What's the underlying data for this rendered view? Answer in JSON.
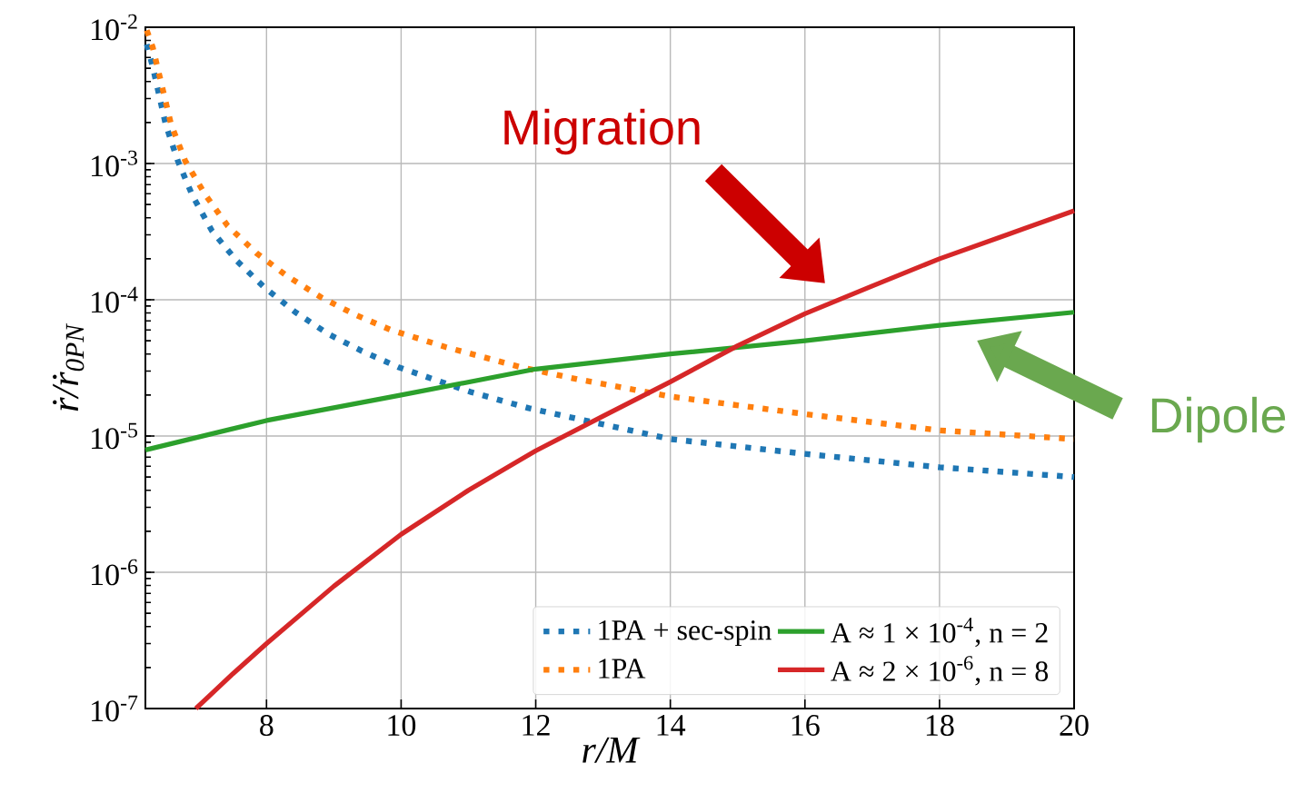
{
  "chart_data": {
    "type": "line",
    "xlabel": "r/M",
    "ylabel": "ṙ/ṙ$_{0PN}$",
    "log": "y",
    "grid": true,
    "legend": "bottom right",
    "xlim": [
      6.2,
      20
    ],
    "xticks": [
      8,
      10,
      12,
      14,
      16,
      18,
      20
    ],
    "ylim": [
      1e-07,
      0.01
    ],
    "yticks": [
      {
        "value": 1e-07,
        "label": "10$^{-7}$"
      },
      {
        "value": 1e-06,
        "label": "10$^{-6}$"
      },
      {
        "value": 1e-05,
        "label": "10$^{-5}$"
      },
      {
        "value": 0.0001,
        "label": "10$^{-4}$"
      },
      {
        "value": 0.001,
        "label": "10$^{-3}$"
      },
      {
        "value": 0.01,
        "label": "10$^{-2}$"
      }
    ],
    "series": [
      {
        "name": "1PA + sec-spin",
        "color": "#1f77b4",
        "line_style": "dotted",
        "x": [
          6.22,
          6.31,
          6.5,
          6.68,
          6.9,
          7.19,
          7.55,
          7.97,
          8.43,
          8.92,
          9.42,
          9.96,
          11.04,
          11.9,
          14,
          16,
          18,
          20
        ],
        "values": [
          0.0075,
          0.0051,
          0.00195,
          0.00105,
          0.00058,
          0.00032,
          0.000195,
          0.000123,
          8.1e-05,
          5.6e-05,
          4.2e-05,
          3.2e-05,
          2.1e-05,
          1.6e-05,
          9.5e-06,
          7.4e-06,
          5.9e-06,
          5e-06
        ]
      },
      {
        "name": "1PA",
        "color": "#ff7f0e",
        "line_style": "dotted",
        "x": [
          6.22,
          6.31,
          6.58,
          6.79,
          7.08,
          7.42,
          7.85,
          8.3,
          8.8,
          9.31,
          9.85,
          10.66,
          11.78,
          12.64,
          14,
          16,
          18,
          20
        ],
        "values": [
          0.0095,
          0.0071,
          0.00195,
          0.00105,
          0.0006,
          0.00035,
          0.00022,
          0.00015,
          0.000105,
          7.8e-05,
          6e-05,
          4.5e-05,
          3.2e-05,
          2.6e-05,
          1.95e-05,
          1.45e-05,
          1.1e-05,
          9.5e-06
        ]
      },
      {
        "name": "A ≈ 1 × 10$^{-4}$, n = 2",
        "color": "#2ca02c",
        "line_style": "solid",
        "x": [
          6.2,
          8,
          10,
          12,
          14,
          16,
          18,
          20
        ],
        "values": [
          7.9e-06,
          1.3e-05,
          2e-05,
          3.1e-05,
          4e-05,
          5e-05,
          6.5e-05,
          8.1e-05
        ]
      },
      {
        "name": "A ≈ 2 × 10$^{-6}$, n = 8",
        "color": "#d62728",
        "line_style": "solid",
        "x": [
          6.95,
          7.5,
          8,
          9,
          10,
          11,
          12,
          13,
          14,
          15,
          16,
          17,
          18,
          19,
          20
        ],
        "values": [
          1e-07,
          1.8e-07,
          3e-07,
          7.9e-07,
          1.9e-06,
          4e-06,
          7.8e-06,
          1.4e-05,
          2.5e-05,
          4.6e-05,
          7.9e-05,
          0.000126,
          0.0002,
          0.0003,
          0.00045
        ]
      }
    ],
    "annotations": [
      "Migration",
      "Dipole"
    ]
  }
}
